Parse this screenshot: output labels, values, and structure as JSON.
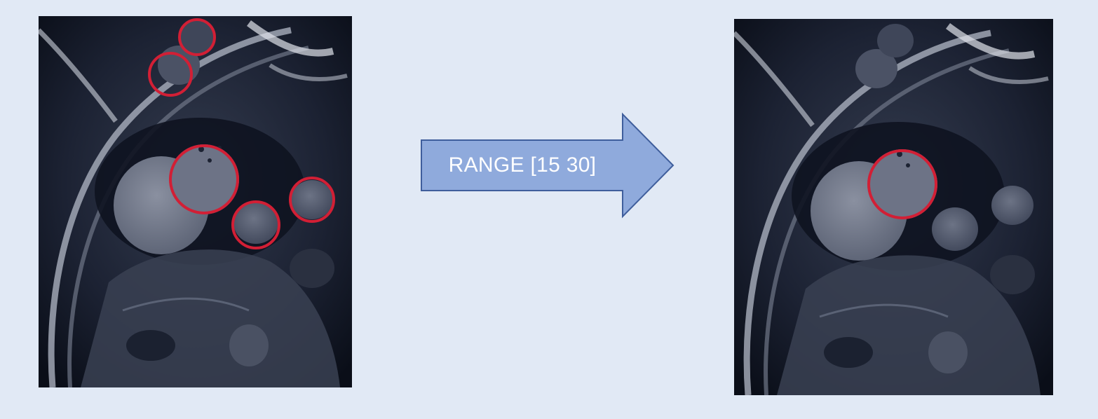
{
  "arrow": {
    "label": "RANGE [15 30]",
    "fill": "#8faadc",
    "stroke": "#3f5e9c"
  },
  "left_panel": {
    "detections": 5,
    "circle_color": "#d21f35"
  },
  "right_panel": {
    "detections": 1,
    "circle_color": "#d21f35"
  }
}
